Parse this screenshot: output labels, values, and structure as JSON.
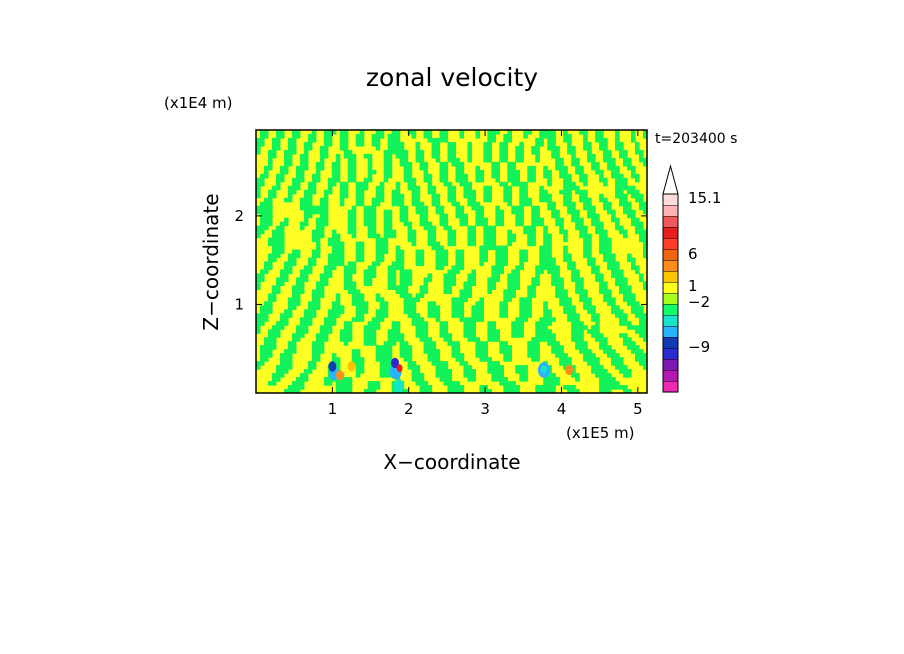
{
  "chart_data": {
    "type": "heatmap",
    "title": "zonal velocity",
    "xlabel": "X−coordinate",
    "ylabel": "Z−coordinate",
    "x_unit": "(x1E5 m)",
    "y_unit": "(x1E4 m)",
    "time_label": "t=203400 s",
    "x_ticks": [
      {
        "value": 1,
        "label": "1"
      },
      {
        "value": 2,
        "label": "2"
      },
      {
        "value": 3,
        "label": "3"
      },
      {
        "value": 4,
        "label": "4"
      },
      {
        "value": 5,
        "label": "5"
      }
    ],
    "y_ticks": [
      {
        "value": 1,
        "label": "1"
      },
      {
        "value": 2,
        "label": "2"
      }
    ],
    "xlim": [
      0,
      5.12
    ],
    "ylim": [
      0,
      2.97
    ],
    "colorbar": {
      "levels": [
        {
          "color": "#ee2ab4"
        },
        {
          "color": "#b417b4"
        },
        {
          "color": "#7d18b4"
        },
        {
          "color": "#2a2acd"
        },
        {
          "color": "#0f3cb4"
        },
        {
          "color": "#2ab4ff"
        },
        {
          "color": "#16e6c8"
        },
        {
          "color": "#10ff68"
        },
        {
          "color": "#a8ff1e"
        },
        {
          "color": "#ffff1a"
        },
        {
          "color": "#ffc400"
        },
        {
          "color": "#ff8c1a"
        },
        {
          "color": "#f0640e"
        },
        {
          "color": "#ff3c28"
        },
        {
          "color": "#e61e1e"
        },
        {
          "color": "#f05a5a"
        },
        {
          "color": "#ffb4b4"
        },
        {
          "color": "#ffdcdc"
        }
      ],
      "tick_labels": [
        "15.1",
        "6",
        "1",
        "−2",
        "−9"
      ],
      "background_bands": {
        "positive": "#ffff24",
        "negative": "#12f25a"
      }
    }
  }
}
